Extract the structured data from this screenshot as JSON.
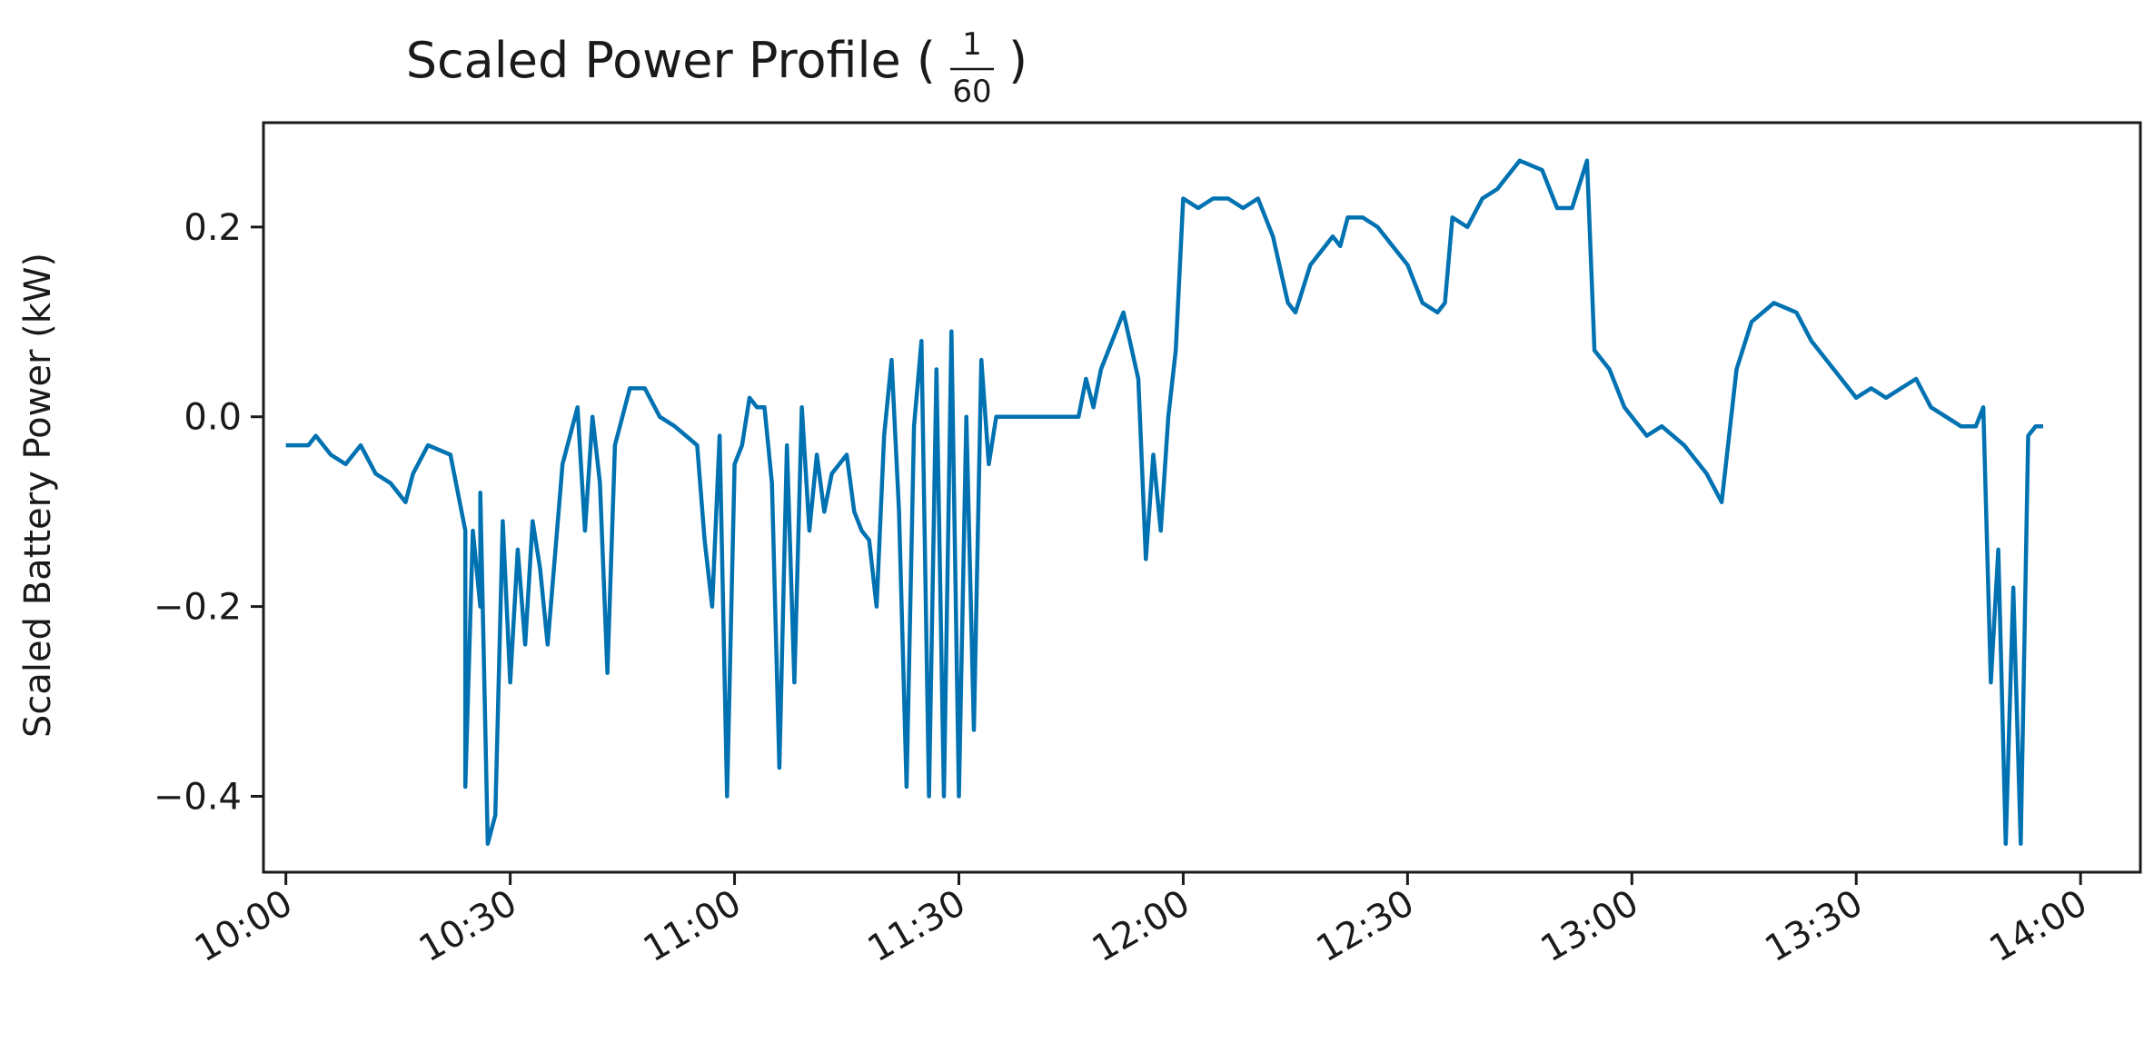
{
  "chart_data": {
    "type": "line",
    "title": "Scaled Power Profile (",
    "title_fraction": {
      "numerator": "1",
      "denominator": "60"
    },
    "title_close": ")",
    "xlabel": "",
    "ylabel": "Scaled Battery Power (kW)",
    "x_range": [
      "09:57",
      "14:08"
    ],
    "ylim": [
      -0.48,
      0.31
    ],
    "x_ticks": [
      "10:00",
      "10:30",
      "11:00",
      "11:30",
      "12:00",
      "12:30",
      "13:00",
      "13:30",
      "14:00"
    ],
    "y_ticks": [
      0.2,
      0.0,
      -0.2,
      -0.4
    ],
    "y_tick_labels": [
      "0.2",
      "0.0",
      "−0.2",
      "−0.4"
    ],
    "grid": false,
    "line_color": "#0072b2",
    "series": [
      {
        "values": [
          [
            "10:00",
            -0.03
          ],
          [
            "10:03",
            -0.03
          ],
          [
            "10:04",
            -0.02
          ],
          [
            "10:06",
            -0.04
          ],
          [
            "10:08",
            -0.05
          ],
          [
            "10:10",
            -0.03
          ],
          [
            "10:12",
            -0.06
          ],
          [
            "10:14",
            -0.07
          ],
          [
            "10:16",
            -0.09
          ],
          [
            "10:17",
            -0.06
          ],
          [
            "10:19",
            -0.03
          ],
          [
            "10:22",
            -0.04
          ],
          [
            "10:24",
            -0.12
          ],
          [
            "10:24",
            -0.39
          ],
          [
            "10:25",
            -0.12
          ],
          [
            "10:26",
            -0.2
          ],
          [
            "10:26",
            -0.08
          ],
          [
            "10:27",
            -0.45
          ],
          [
            "10:28",
            -0.42
          ],
          [
            "10:29",
            -0.11
          ],
          [
            "10:30",
            -0.28
          ],
          [
            "10:31",
            -0.14
          ],
          [
            "10:32",
            -0.24
          ],
          [
            "10:33",
            -0.11
          ],
          [
            "10:34",
            -0.16
          ],
          [
            "10:35",
            -0.24
          ],
          [
            "10:37",
            -0.05
          ],
          [
            "10:39",
            0.01
          ],
          [
            "10:40",
            -0.12
          ],
          [
            "10:41",
            0.0
          ],
          [
            "10:42",
            -0.07
          ],
          [
            "10:43",
            -0.27
          ],
          [
            "10:44",
            -0.03
          ],
          [
            "10:46",
            0.03
          ],
          [
            "10:48",
            0.03
          ],
          [
            "10:50",
            0.0
          ],
          [
            "10:52",
            -0.01
          ],
          [
            "10:55",
            -0.03
          ],
          [
            "10:56",
            -0.13
          ],
          [
            "10:57",
            -0.2
          ],
          [
            "10:58",
            -0.02
          ],
          [
            "10:59",
            -0.4
          ],
          [
            "11:00",
            -0.05
          ],
          [
            "11:01",
            -0.03
          ],
          [
            "11:02",
            0.02
          ],
          [
            "11:03",
            0.01
          ],
          [
            "11:04",
            0.01
          ],
          [
            "11:05",
            -0.07
          ],
          [
            "11:06",
            -0.37
          ],
          [
            "11:07",
            -0.03
          ],
          [
            "11:08",
            -0.28
          ],
          [
            "11:09",
            0.01
          ],
          [
            "11:10",
            -0.12
          ],
          [
            "11:11",
            -0.04
          ],
          [
            "11:12",
            -0.1
          ],
          [
            "11:13",
            -0.06
          ],
          [
            "11:15",
            -0.04
          ],
          [
            "11:16",
            -0.1
          ],
          [
            "11:17",
            -0.12
          ],
          [
            "11:18",
            -0.13
          ],
          [
            "11:19",
            -0.2
          ],
          [
            "11:20",
            -0.02
          ],
          [
            "11:21",
            0.06
          ],
          [
            "11:22",
            -0.1
          ],
          [
            "11:23",
            -0.39
          ],
          [
            "11:24",
            -0.01
          ],
          [
            "11:25",
            0.08
          ],
          [
            "11:26",
            -0.4
          ],
          [
            "11:27",
            0.05
          ],
          [
            "11:28",
            -0.4
          ],
          [
            "11:29",
            0.09
          ],
          [
            "11:30",
            -0.4
          ],
          [
            "11:31",
            0.0
          ],
          [
            "11:32",
            -0.33
          ],
          [
            "11:33",
            0.06
          ],
          [
            "11:34",
            -0.05
          ],
          [
            "11:35",
            0.0
          ],
          [
            "11:46",
            0.0
          ],
          [
            "11:47",
            0.04
          ],
          [
            "11:48",
            0.01
          ],
          [
            "11:49",
            0.05
          ],
          [
            "11:52",
            0.11
          ],
          [
            "11:54",
            0.04
          ],
          [
            "11:55",
            -0.15
          ],
          [
            "11:56",
            -0.04
          ],
          [
            "11:57",
            -0.12
          ],
          [
            "11:58",
            0.0
          ],
          [
            "11:59",
            0.07
          ],
          [
            "12:00",
            0.23
          ],
          [
            "12:02",
            0.22
          ],
          [
            "12:04",
            0.23
          ],
          [
            "12:06",
            0.23
          ],
          [
            "12:08",
            0.22
          ],
          [
            "12:10",
            0.23
          ],
          [
            "12:12",
            0.19
          ],
          [
            "12:14",
            0.12
          ],
          [
            "12:15",
            0.11
          ],
          [
            "12:17",
            0.16
          ],
          [
            "12:19",
            0.18
          ],
          [
            "12:20",
            0.19
          ],
          [
            "12:21",
            0.18
          ],
          [
            "12:22",
            0.21
          ],
          [
            "12:24",
            0.21
          ],
          [
            "12:26",
            0.2
          ],
          [
            "12:28",
            0.18
          ],
          [
            "12:30",
            0.16
          ],
          [
            "12:32",
            0.12
          ],
          [
            "12:34",
            0.11
          ],
          [
            "12:35",
            0.12
          ],
          [
            "12:36",
            0.21
          ],
          [
            "12:38",
            0.2
          ],
          [
            "12:40",
            0.23
          ],
          [
            "12:42",
            0.24
          ],
          [
            "12:45",
            0.27
          ],
          [
            "12:48",
            0.26
          ],
          [
            "12:50",
            0.22
          ],
          [
            "12:52",
            0.22
          ],
          [
            "12:54",
            0.27
          ],
          [
            "12:55",
            0.07
          ],
          [
            "12:57",
            0.05
          ],
          [
            "12:59",
            0.01
          ],
          [
            "13:02",
            -0.02
          ],
          [
            "13:04",
            -0.01
          ],
          [
            "13:07",
            -0.03
          ],
          [
            "13:10",
            -0.06
          ],
          [
            "13:12",
            -0.09
          ],
          [
            "13:13",
            -0.02
          ],
          [
            "13:14",
            0.05
          ],
          [
            "13:16",
            0.1
          ],
          [
            "13:19",
            0.12
          ],
          [
            "13:22",
            0.11
          ],
          [
            "13:24",
            0.08
          ],
          [
            "13:26",
            0.06
          ],
          [
            "13:28",
            0.04
          ],
          [
            "13:30",
            0.02
          ],
          [
            "13:32",
            0.03
          ],
          [
            "13:34",
            0.02
          ],
          [
            "13:36",
            0.03
          ],
          [
            "13:38",
            0.04
          ],
          [
            "13:40",
            0.01
          ],
          [
            "13:42",
            0.0
          ],
          [
            "13:44",
            -0.01
          ],
          [
            "13:46",
            -0.01
          ],
          [
            "13:47",
            0.01
          ],
          [
            "13:48",
            -0.28
          ],
          [
            "13:49",
            -0.14
          ],
          [
            "13:50",
            -0.45
          ],
          [
            "13:51",
            -0.18
          ],
          [
            "13:52",
            -0.45
          ],
          [
            "13:53",
            -0.02
          ],
          [
            "13:54",
            -0.01
          ],
          [
            "13:55",
            -0.01
          ]
        ]
      }
    ]
  }
}
